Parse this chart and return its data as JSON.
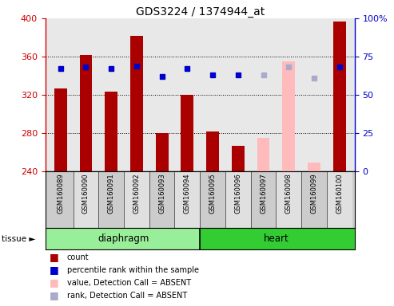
{
  "title": "GDS3224 / 1374944_at",
  "samples": [
    "GSM160089",
    "GSM160090",
    "GSM160091",
    "GSM160092",
    "GSM160093",
    "GSM160094",
    "GSM160095",
    "GSM160096",
    "GSM160097",
    "GSM160098",
    "GSM160099",
    "GSM160100"
  ],
  "present": [
    true,
    true,
    true,
    true,
    true,
    true,
    true,
    true,
    false,
    false,
    false,
    true
  ],
  "bar_values": [
    327,
    362,
    323,
    382,
    280,
    320,
    282,
    267,
    275,
    355,
    249,
    397
  ],
  "bar_color_absent": "#ffbbbb",
  "bar_color_present": "#aa0000",
  "rank_values": [
    67,
    68,
    67,
    69,
    62,
    67,
    63,
    63,
    63,
    68,
    61,
    68
  ],
  "rank_color_present": "#0000cc",
  "rank_color_absent": "#aaaacc",
  "ylim_left": [
    240,
    400
  ],
  "ylim_right": [
    0,
    100
  ],
  "yticks_left": [
    240,
    280,
    320,
    360,
    400
  ],
  "yticks_right": [
    0,
    25,
    50,
    75,
    100
  ],
  "tissue_groups": [
    {
      "label": "diaphragm",
      "start": 0,
      "end": 5
    },
    {
      "label": "heart",
      "start": 6,
      "end": 11
    }
  ],
  "tissue_label": "tissue ►",
  "legend_items": [
    {
      "label": "count",
      "color": "#aa0000"
    },
    {
      "label": "percentile rank within the sample",
      "color": "#0000cc"
    },
    {
      "label": "value, Detection Call = ABSENT",
      "color": "#ffbbbb"
    },
    {
      "label": "rank, Detection Call = ABSENT",
      "color": "#aaaacc"
    }
  ],
  "bar_width": 0.5,
  "rank_marker_size": 5,
  "left_axis_color": "#cc0000",
  "right_axis_color": "#0000cc",
  "plot_bg": "#e8e8e8",
  "diaphragm_color": "#99ee99",
  "heart_color": "#33cc33"
}
